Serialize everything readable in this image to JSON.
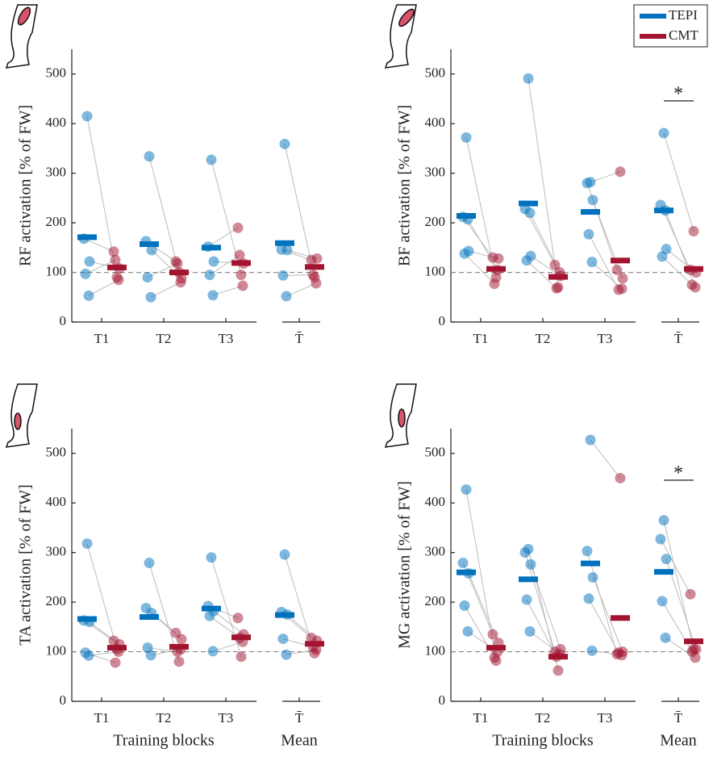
{
  "chart_data": [
    {
      "type": "paired-dots",
      "ylabel": "RF activation [% of FW]",
      "categories": [
        "T1",
        "T2",
        "T3",
        "T̄"
      ],
      "ylim": [
        0,
        550
      ],
      "yticks": [
        0,
        100,
        200,
        300,
        400,
        500
      ],
      "reference_line": 100,
      "series": [
        {
          "name": "TEPI",
          "color": "#0072bd",
          "values": [
            171,
            157,
            150,
            159
          ],
          "points": [
            [
              415,
              168,
              122,
              97,
              53
            ],
            [
              334,
              163,
              145,
              90,
              50
            ],
            [
              327,
              152,
              122,
              95,
              54
            ],
            [
              359,
              146,
              145,
              94,
              52
            ]
          ]
        },
        {
          "name": "CMT",
          "color": "#a2142f",
          "values": [
            110,
            100,
            119,
            111
          ],
          "points": [
            [
              90,
              142,
              108,
              125,
              85
            ],
            [
              100,
              122,
              88,
              118,
              80
            ],
            [
              95,
              190,
              118,
              135,
              73
            ],
            [
              90,
              125,
              128,
              95,
              78
            ]
          ]
        }
      ]
    },
    {
      "type": "paired-dots",
      "ylabel": "BF activation [% of FW]",
      "categories": [
        "T1",
        "T2",
        "T3",
        "T̄"
      ],
      "ylim": [
        0,
        550
      ],
      "yticks": [
        0,
        100,
        200,
        300,
        400,
        500
      ],
      "reference_line": 100,
      "significance_label": "*",
      "legend": "upper right",
      "series": [
        {
          "name": "TEPI",
          "color": "#0072bd",
          "values": [
            214,
            239,
            222,
            225
          ],
          "points": [
            [
              372,
              212,
              143,
              138,
              207
            ],
            [
              491,
              228,
              133,
              124,
              220
            ],
            [
              282,
              280,
              246,
              177,
              121
            ],
            [
              381,
              236,
              147,
              132,
              225
            ]
          ]
        },
        {
          "name": "CMT",
          "color": "#a2142f",
          "values": [
            107,
            91,
            124,
            107
          ],
          "points": [
            [
              90,
              130,
              128,
              77,
              105
            ],
            [
              70,
              115,
              93,
              68,
              100
            ],
            [
              303,
              105,
              88,
              65,
              67
            ],
            [
              183,
              105,
              100,
              75,
              70
            ]
          ]
        }
      ]
    },
    {
      "type": "paired-dots",
      "ylabel": "TA activation [% of FW]",
      "categories": [
        "T1",
        "T2",
        "T3",
        "T̄"
      ],
      "ylim": [
        0,
        550
      ],
      "yticks": [
        0,
        100,
        200,
        300,
        400,
        500
      ],
      "reference_line": 100,
      "xlabel": "Training blocks",
      "xlabel_mean": "Mean",
      "series": [
        {
          "name": "TEPI",
          "color": "#0072bd",
          "values": [
            166,
            170,
            187,
            174
          ],
          "points": [
            [
              318,
              163,
              160,
              98,
              92
            ],
            [
              279,
              188,
              178,
              108,
              93
            ],
            [
              290,
              192,
              182,
              172,
              101
            ],
            [
              296,
              180,
              175,
              126,
              94
            ]
          ]
        },
        {
          "name": "CMT",
          "color": "#a2142f",
          "values": [
            108,
            110,
            129,
            116
          ],
          "points": [
            [
              105,
              122,
              115,
              78,
              100
            ],
            [
              80,
              138,
              125,
              100,
              105
            ],
            [
              90,
              168,
              135,
              128,
              120
            ],
            [
              97,
              128,
              122,
              110,
              104
            ]
          ]
        }
      ]
    },
    {
      "type": "paired-dots",
      "ylabel": "MG activation [% of FW]",
      "categories": [
        "T1",
        "T2",
        "T3",
        "T̄"
      ],
      "ylim": [
        0,
        550
      ],
      "yticks": [
        0,
        100,
        200,
        300,
        400,
        500
      ],
      "reference_line": 100,
      "significance_label": "*",
      "xlabel": "Training blocks",
      "xlabel_mean": "Mean",
      "series": [
        {
          "name": "TEPI",
          "color": "#0072bd",
          "values": [
            260,
            246,
            278,
            261
          ],
          "points": [
            [
              427,
              279,
              258,
              193,
              141
            ],
            [
              307,
              300,
              276,
              205,
              141
            ],
            [
              527,
              303,
              250,
              207,
              102
            ],
            [
              365,
              327,
              287,
              202,
              128
            ]
          ]
        },
        {
          "name": "CMT",
          "color": "#a2142f",
          "values": [
            108,
            90,
            168,
            121
          ],
          "points": [
            [
              82,
              135,
              118,
              88,
              100
            ],
            [
              62,
              100,
              105,
              90,
              95
            ],
            [
              450,
              95,
              100,
              98,
              93
            ],
            [
              105,
              216,
              105,
              100,
              88
            ]
          ]
        }
      ]
    }
  ]
}
